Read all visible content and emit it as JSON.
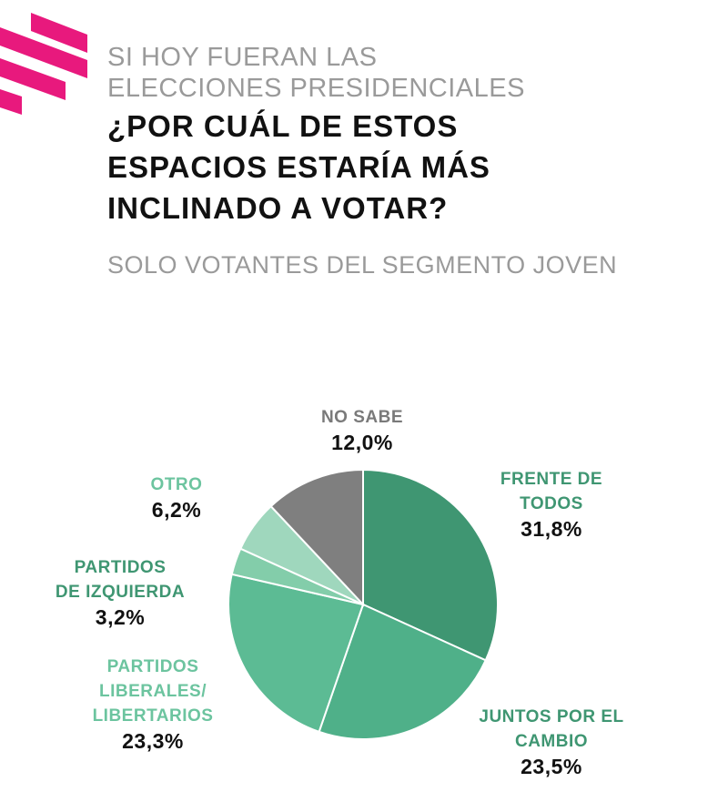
{
  "header": {
    "subtitle_line1": "SI HOY FUERAN LAS",
    "subtitle_line2": "ELECCIONES PRESIDENCIALES",
    "title_line1": "¿POR CUÁL DE ESTOS",
    "title_line2": "ESPACIOS ESTARÍA MÁS",
    "title_line3": "INCLINADO A VOTAR?",
    "note": "SOLO VOTANTES DEL SEGMENTO JOVEN"
  },
  "colors": {
    "logo": "#e8197d",
    "frente": "#3f9672",
    "juntos": "#4fb089",
    "liberales": "#5cbb94",
    "izquierda": "#83cdaa",
    "otro": "#9fd7bd",
    "no_sabe": "#7f7f7f",
    "label_green": "#3f9672",
    "label_light": "#6cc49f",
    "label_gray": "#7a7a7a"
  },
  "chart_data": {
    "type": "pie",
    "title": "¿Por cuál de estos espacios estaría más inclinado a votar?",
    "slices": [
      {
        "key": "frente",
        "name_lines": [
          "FRENTE DE",
          "TODOS"
        ],
        "value": 31.8,
        "value_label": "31,8%"
      },
      {
        "key": "juntos",
        "name_lines": [
          "JUNTOS POR EL",
          "CAMBIO"
        ],
        "value": 23.5,
        "value_label": "23,5%"
      },
      {
        "key": "liberales",
        "name_lines": [
          "PARTIDOS",
          "LIBERALES/",
          "LIBERTARIOS"
        ],
        "value": 23.3,
        "value_label": "23,3%"
      },
      {
        "key": "izquierda",
        "name_lines": [
          "PARTIDOS",
          "DE IZQUIERDA"
        ],
        "value": 3.2,
        "value_label": "3,2%"
      },
      {
        "key": "otro",
        "name_lines": [
          "OTRO"
        ],
        "value": 6.2,
        "value_label": "6,2%"
      },
      {
        "key": "no_sabe",
        "name_lines": [
          "NO SABE"
        ],
        "value": 12.0,
        "value_label": "12,0%"
      }
    ]
  }
}
